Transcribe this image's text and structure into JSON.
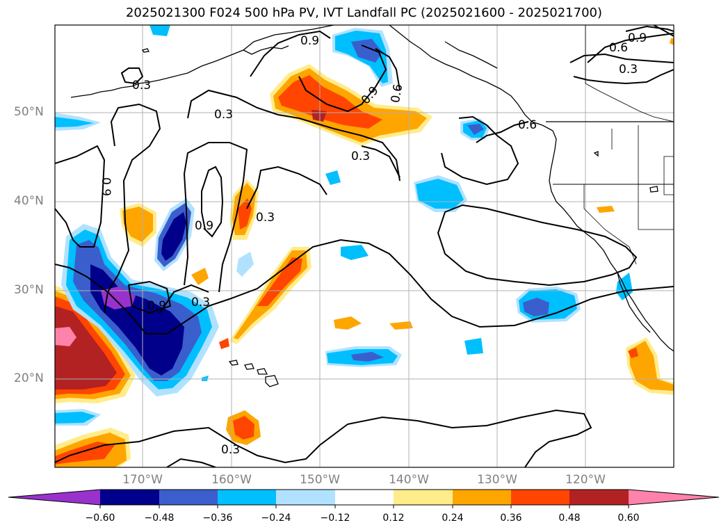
{
  "title": "2025021300 F024 500 hPa PV, IVT Landfall PC (2025021600 - 2025021700)",
  "lat_labels": [
    "50°N",
    "40°N",
    "30°N",
    "20°N"
  ],
  "lon_labels": [
    "170°W",
    "160°W",
    "150°W",
    "140°W",
    "130°W",
    "120°W"
  ],
  "contour_labels": [
    "0.9",
    "0.6",
    "0.3",
    "0.3",
    "0.3",
    "0.9",
    "0.6",
    "0.3",
    "0.9",
    "0.6",
    "0.9",
    "0.3",
    "0.9",
    "0.3",
    "0.3"
  ],
  "colorbar": {
    "ticks": [
      "−0.60",
      "−0.48",
      "−0.36",
      "−0.24",
      "−0.12",
      "0.12",
      "0.24",
      "0.36",
      "0.48",
      "0.60"
    ],
    "colors": [
      "#9932cc",
      "#00008b",
      "#3a5fcd",
      "#00bfff",
      "#b0e2ff",
      "#ffffff",
      "#ffec8b",
      "#ffa500",
      "#ff4500",
      "#b22222",
      "#ff82ab"
    ]
  },
  "colors": {
    "deep_purple": "#9932cc",
    "navy": "#00008b",
    "royal_blue": "#3a5fcd",
    "sky_blue": "#00bfff",
    "light_blue": "#b0e2ff",
    "pale_yellow": "#ffec8b",
    "orange": "#ffa500",
    "red_orange": "#ff4500",
    "firebrick": "#b22222",
    "pink": "#ff82ab"
  }
}
